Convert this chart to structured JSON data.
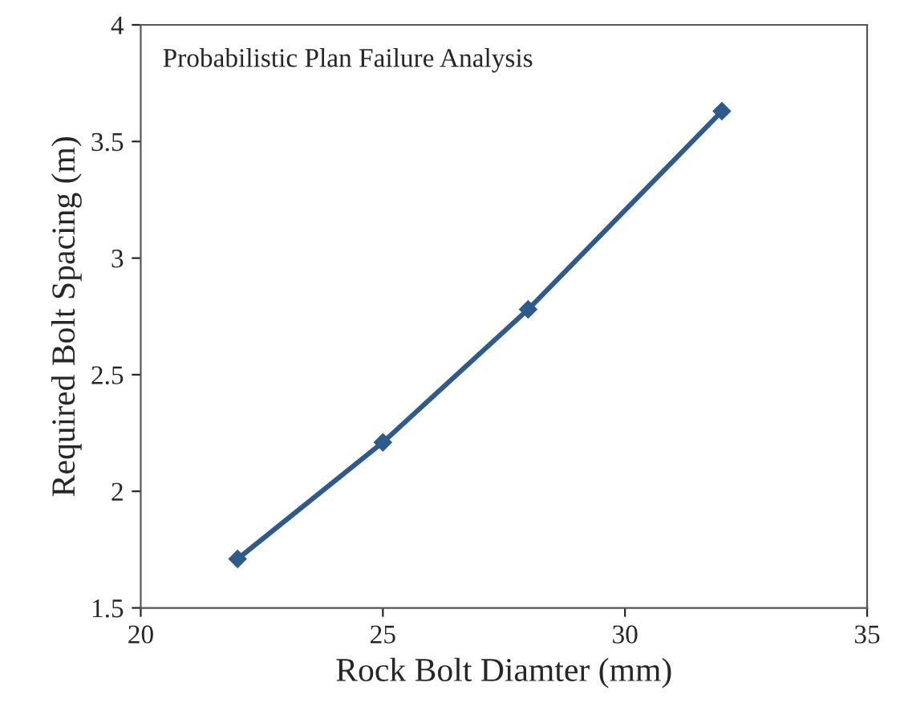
{
  "chart_data": {
    "type": "line",
    "xlabel": "Rock Bolt Diamter (mm)",
    "ylabel": "Required Bolt Spacing (m)",
    "annotations": [
      "Probabilistic Plan Failure Analysis"
    ],
    "x": [
      22,
      25,
      28,
      32
    ],
    "series": [
      {
        "color": "#2e5a8c",
        "values": [
          1.71,
          2.21,
          2.78,
          3.63
        ]
      }
    ],
    "xlim": [
      20,
      35
    ],
    "xticks": [
      20,
      25,
      30,
      35
    ],
    "ylim": [
      1.5,
      4
    ],
    "yticks": [
      1.5,
      2,
      2.5,
      3,
      3.5,
      4
    ],
    "marker": "diamond",
    "line_style": "solid",
    "grid": false,
    "legend": false
  }
}
